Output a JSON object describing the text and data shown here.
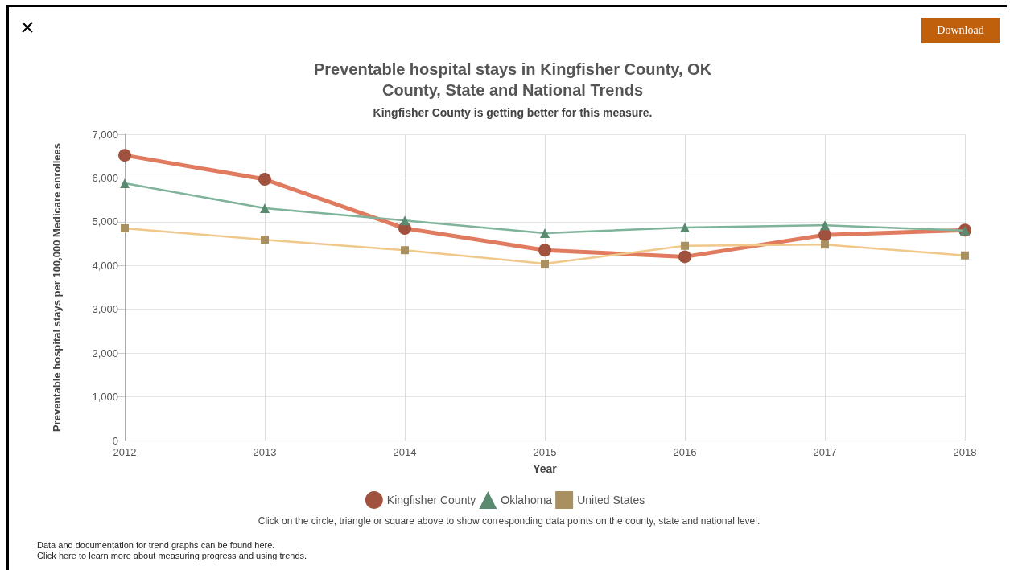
{
  "chart_data": {
    "type": "line",
    "title": "Preventable hospital stays in Kingfisher County, OK\nCounty, State and National Trends",
    "subtitle": "Kingfisher County is getting better for this measure.",
    "xlabel": "Year",
    "ylabel": "Preventable hospital stays per 100,000 Medicare enrollees",
    "categories": [
      "2012",
      "2013",
      "2014",
      "2015",
      "2016",
      "2017",
      "2018"
    ],
    "series": [
      {
        "name": "Kingfisher County",
        "color": "#e07b5f",
        "marker": "circle",
        "values": [
          6520,
          5970,
          4850,
          4350,
          4200,
          4700,
          4810
        ]
      },
      {
        "name": "Oklahoma",
        "color": "#7fb39a",
        "marker": "triangle",
        "values": [
          5880,
          5310,
          5030,
          4740,
          4870,
          4920,
          4800
        ]
      },
      {
        "name": "United States",
        "color": "#f0c88a",
        "marker": "square",
        "values": [
          4850,
          4590,
          4350,
          4040,
          4450,
          4480,
          4230
        ]
      }
    ],
    "ylim": [
      0,
      7000
    ],
    "yticks": [
      {
        "value": 0,
        "label": "0"
      },
      {
        "value": 1000,
        "label": "1,000"
      },
      {
        "value": 2000,
        "label": "2,000"
      },
      {
        "value": 3000,
        "label": "3,000"
      },
      {
        "value": 4000,
        "label": "4,000"
      },
      {
        "value": 5000,
        "label": "5,000"
      },
      {
        "value": 6000,
        "label": "6,000"
      },
      {
        "value": 7000,
        "label": "7,000"
      }
    ],
    "grid": true,
    "legend": "bottom",
    "line_style": "solid",
    "annotations": [
      "Download",
      "Click on the circle, triangle or square above to show corresponding data points on the county, state and national level.",
      "Data and documentation for trend graphs can be found here.",
      "Click here to learn more about measuring progress and using trends."
    ]
  }
}
